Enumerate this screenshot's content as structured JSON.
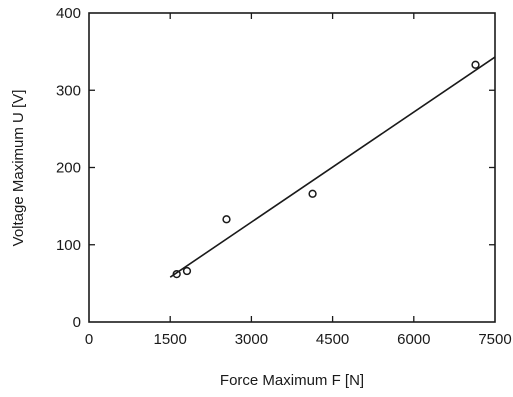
{
  "chart_data": {
    "type": "scatter",
    "xlabel": "Force Maximum F [N]",
    "ylabel": "Voltage Maximum U [V]",
    "xlim": [
      0,
      7500
    ],
    "ylim": [
      0,
      400
    ],
    "x_ticks": [
      0,
      1500,
      3000,
      4500,
      6000,
      7500
    ],
    "y_ticks": [
      0,
      100,
      200,
      300,
      400
    ],
    "x_tick_labels": [
      "0",
      "1500",
      "3000",
      "4500",
      "6000",
      "7500"
    ],
    "y_tick_labels": [
      "0",
      "100",
      "200",
      "300",
      "400"
    ],
    "grid": false,
    "legend": "none",
    "series": [
      {
        "kind": "points",
        "marker": "open-circle",
        "x": [
          1620,
          1810,
          2540,
          4130,
          7140
        ],
        "y": [
          62,
          66,
          133,
          166,
          333
        ]
      },
      {
        "kind": "fit-line",
        "x": [
          1500,
          7500
        ],
        "y": [
          58,
          343
        ]
      }
    ],
    "colors": {
      "ink": "#1a1a1a",
      "background": "#ffffff"
    }
  }
}
